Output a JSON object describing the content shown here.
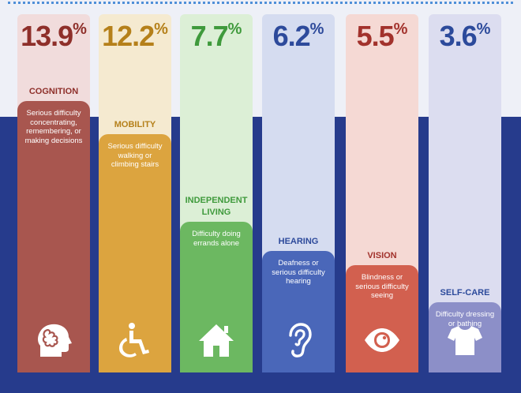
{
  "chart_data": {
    "type": "bar",
    "unit": "%",
    "categories": [
      "COGNITION",
      "MOBILITY",
      "INDEPENDENT LIVING",
      "HEARING",
      "VISION",
      "SELF-CARE"
    ],
    "values": [
      13.9,
      12.2,
      7.7,
      6.2,
      5.5,
      3.6
    ],
    "value_labels": [
      "13.9",
      "12.2",
      "7.7",
      "6.2",
      "5.5",
      "3.6"
    ],
    "descriptions": [
      "Serious difficulty concentrating, remembering, or making decisions",
      "Serious difficulty walking or climbing stairs",
      "Difficulty doing errands alone",
      "Deafness or serious difficulty hearing",
      "Blindness or serious difficulty seeing",
      "Difficulty dressing or bathing"
    ],
    "icons": [
      "brain-head-icon",
      "wheelchair-icon",
      "house-icon",
      "ear-icon",
      "eye-icon",
      "shirt-icon"
    ],
    "colors": {
      "bars": [
        "#a8564f",
        "#dca43f",
        "#6cb861",
        "#4a67b9",
        "#d2604f",
        "#8c8fc8"
      ],
      "backs": [
        "#f1dcdc",
        "#f5ead0",
        "#dcefd6",
        "#d5dcf0",
        "#f5d9d4",
        "#dcddf0"
      ],
      "labels": [
        "#8e2f2a",
        "#b5801a",
        "#3f9a3c",
        "#2d4a9b",
        "#a2322c",
        "#2c4a9b"
      ],
      "band": "#263b8c"
    },
    "ylim": [
      0,
      15.5
    ],
    "title": "",
    "xlabel": "",
    "ylabel": ""
  }
}
